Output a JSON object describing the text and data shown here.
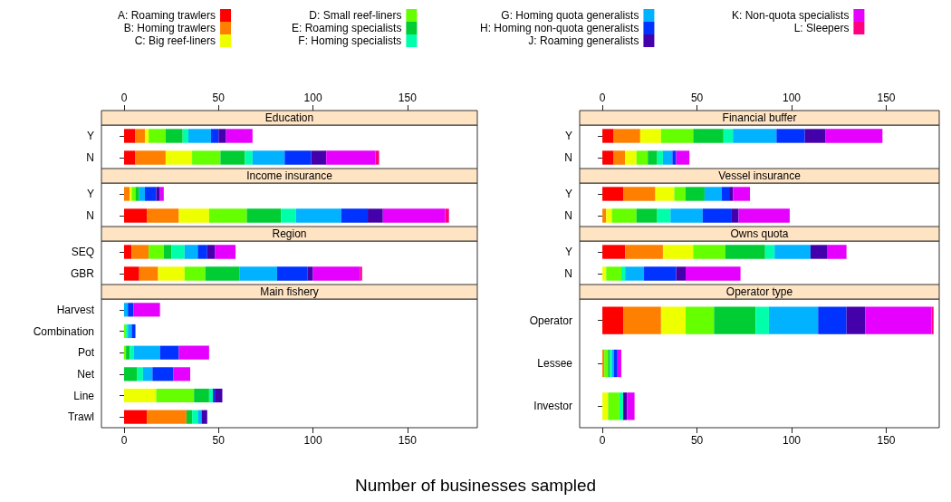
{
  "chart_data": [
    {
      "type": "bar",
      "title": "Education",
      "categories": [
        "Y",
        "N"
      ],
      "stacked": true,
      "orientation": "horizontal",
      "legend": "top",
      "xlim": [
        -12,
        187
      ],
      "xticks": [
        0,
        50,
        100,
        150
      ],
      "series": [
        {
          "name": "A: Roaming trawlers",
          "color": "#ff0000",
          "values": [
            6,
            6
          ]
        },
        {
          "name": "B: Homing trawlers",
          "color": "#ff8000",
          "values": [
            5,
            16
          ]
        },
        {
          "name": "C: Big reef-liners",
          "color": "#eeff00",
          "values": [
            2,
            14
          ]
        },
        {
          "name": "D: Small reef-liners",
          "color": "#66ff00",
          "values": [
            9,
            15
          ]
        },
        {
          "name": "E: Roaming specialists",
          "color": "#00cc33",
          "values": [
            9,
            13
          ]
        },
        {
          "name": "F: Homing specialists",
          "color": "#00ffaa",
          "values": [
            3,
            4
          ]
        },
        {
          "name": "G: Homing quota generalists",
          "color": "#00b2ff",
          "values": [
            12,
            17
          ]
        },
        {
          "name": "H: Homing non-quota generalists",
          "color": "#0033ff",
          "values": [
            4,
            14
          ]
        },
        {
          "name": "J: Roaming generalists",
          "color": "#4400aa",
          "values": [
            4,
            8
          ]
        },
        {
          "name": "K: Non-quota specialists",
          "color": "#e600ff",
          "values": [
            14,
            26
          ]
        },
        {
          "name": "L: Sleepers",
          "color": "#ff0080",
          "values": [
            0,
            2
          ]
        }
      ]
    },
    {
      "type": "bar",
      "title": "Income insurance",
      "categories": [
        "Y",
        "N"
      ],
      "stacked": true,
      "orientation": "horizontal",
      "xlim": [
        -12,
        187
      ],
      "xticks": [
        0,
        50,
        100,
        150
      ],
      "tick_labels": "y",
      "series": [
        {
          "color": "#ff0000",
          "values": [
            0,
            12
          ]
        },
        {
          "color": "#ff8000",
          "values": [
            3,
            17
          ]
        },
        {
          "color": "#eeff00",
          "values": [
            1,
            16
          ]
        },
        {
          "color": "#66ff00",
          "values": [
            2,
            20
          ]
        },
        {
          "color": "#00cc33",
          "values": [
            2,
            18
          ]
        },
        {
          "color": "#00ffaa",
          "values": [
            0,
            8
          ]
        },
        {
          "color": "#00b2ff",
          "values": [
            3,
            24
          ]
        },
        {
          "color": "#0033ff",
          "values": [
            6,
            14
          ]
        },
        {
          "color": "#4400aa",
          "values": [
            2,
            8
          ]
        },
        {
          "color": "#e600ff",
          "values": [
            2,
            33
          ]
        },
        {
          "color": "#ff0080",
          "values": [
            0,
            2
          ]
        }
      ]
    },
    {
      "type": "bar",
      "title": "Region",
      "categories": [
        "SEQ",
        "GBR"
      ],
      "stacked": true,
      "orientation": "horizontal",
      "xlim": [
        -12,
        187
      ],
      "xticks": [
        0,
        50,
        100,
        150
      ],
      "tick_labels": "y",
      "series": [
        {
          "color": "#ff0000",
          "values": [
            4,
            8
          ]
        },
        {
          "color": "#ff8000",
          "values": [
            9,
            10
          ]
        },
        {
          "color": "#eeff00",
          "values": [
            0,
            14
          ]
        },
        {
          "color": "#66ff00",
          "values": [
            8,
            11
          ]
        },
        {
          "color": "#00cc33",
          "values": [
            4,
            18
          ]
        },
        {
          "color": "#00ffaa",
          "values": [
            7,
            0
          ]
        },
        {
          "color": "#00b2ff",
          "values": [
            7,
            20
          ]
        },
        {
          "color": "#0033ff",
          "values": [
            5,
            16
          ]
        },
        {
          "color": "#4400aa",
          "values": [
            4,
            3
          ]
        },
        {
          "color": "#e600ff",
          "values": [
            11,
            25
          ]
        },
        {
          "color": "#ff0080",
          "values": [
            0,
            1
          ]
        }
      ]
    },
    {
      "type": "bar",
      "title": "Main fishery",
      "categories": [
        "Harvest",
        "Combination",
        "Pot",
        "Net",
        "Line",
        "Trawl"
      ],
      "stacked": true,
      "orientation": "horizontal",
      "xlabel": "Number of businesses sampled",
      "xlim": [
        -12,
        187
      ],
      "xticks": [
        0,
        50,
        100,
        150
      ],
      "series": [
        {
          "color": "#ff0000",
          "values": [
            0,
            0,
            0,
            0,
            0,
            12
          ]
        },
        {
          "color": "#ff8000",
          "values": [
            0,
            0,
            0,
            0,
            0,
            21
          ]
        },
        {
          "color": "#eeff00",
          "values": [
            0,
            0,
            0,
            0,
            17,
            0
          ]
        },
        {
          "color": "#66ff00",
          "values": [
            0,
            1,
            1,
            0,
            20,
            0
          ]
        },
        {
          "color": "#00cc33",
          "values": [
            0,
            0,
            2,
            7,
            8,
            3
          ]
        },
        {
          "color": "#00ffaa",
          "values": [
            0,
            1,
            2,
            3,
            2,
            3
          ]
        },
        {
          "color": "#00b2ff",
          "values": [
            2,
            2,
            14,
            5,
            0,
            2
          ]
        },
        {
          "color": "#0033ff",
          "values": [
            3,
            2,
            10,
            11,
            1,
            0
          ]
        },
        {
          "color": "#4400aa",
          "values": [
            0,
            0,
            0,
            0,
            4,
            3
          ]
        },
        {
          "color": "#e600ff",
          "values": [
            14,
            0,
            16,
            9,
            0,
            0
          ]
        },
        {
          "color": "#ff0080",
          "values": [
            0,
            0,
            0,
            0,
            0,
            0
          ]
        }
      ]
    },
    {
      "type": "bar",
      "title": "Financial buffer",
      "categories": [
        "Y",
        "N"
      ],
      "stacked": true,
      "orientation": "horizontal",
      "xlim": [
        -12,
        178
      ],
      "xticks": [
        0,
        50,
        100,
        150
      ],
      "series": [
        {
          "color": "#ff0000",
          "values": [
            6,
            6
          ]
        },
        {
          "color": "#ff8000",
          "values": [
            14,
            6
          ]
        },
        {
          "color": "#eeff00",
          "values": [
            11,
            6
          ]
        },
        {
          "color": "#66ff00",
          "values": [
            17,
            6
          ]
        },
        {
          "color": "#00cc33",
          "values": [
            16,
            5
          ]
        },
        {
          "color": "#00ffaa",
          "values": [
            5,
            3
          ]
        },
        {
          "color": "#00b2ff",
          "values": [
            23,
            5
          ]
        },
        {
          "color": "#0033ff",
          "values": [
            15,
            2
          ]
        },
        {
          "color": "#4400aa",
          "values": [
            11,
            0
          ]
        },
        {
          "color": "#e600ff",
          "values": [
            30,
            7
          ]
        },
        {
          "color": "#ff0080",
          "values": [
            0,
            0
          ]
        }
      ]
    },
    {
      "type": "bar",
      "title": "Vessel insurance",
      "categories": [
        "Y",
        "N"
      ],
      "stacked": true,
      "orientation": "horizontal",
      "xlim": [
        -12,
        178
      ],
      "xticks": [
        0,
        50,
        100,
        150
      ],
      "tick_labels": "y",
      "series": [
        {
          "color": "#ff0000",
          "values": [
            11,
            0
          ]
        },
        {
          "color": "#ff8000",
          "values": [
            17,
            2
          ]
        },
        {
          "color": "#eeff00",
          "values": [
            10,
            3
          ]
        },
        {
          "color": "#66ff00",
          "values": [
            6,
            13
          ]
        },
        {
          "color": "#00cc33",
          "values": [
            10,
            11
          ]
        },
        {
          "color": "#00ffaa",
          "values": [
            0,
            7
          ]
        },
        {
          "color": "#00b2ff",
          "values": [
            9,
            17
          ]
        },
        {
          "color": "#0033ff",
          "values": [
            4,
            15
          ]
        },
        {
          "color": "#4400aa",
          "values": [
            2,
            4
          ]
        },
        {
          "color": "#e600ff",
          "values": [
            9,
            27
          ]
        },
        {
          "color": "#ff0080",
          "values": [
            0,
            0
          ]
        }
      ]
    },
    {
      "type": "bar",
      "title": "Owns quota",
      "categories": [
        "Y",
        "N"
      ],
      "stacked": true,
      "orientation": "horizontal",
      "xlim": [
        -12,
        178
      ],
      "xticks": [
        0,
        50,
        100,
        150
      ],
      "tick_labels": "y",
      "series": [
        {
          "color": "#ff0000",
          "values": [
            12,
            0
          ]
        },
        {
          "color": "#ff8000",
          "values": [
            20,
            0
          ]
        },
        {
          "color": "#eeff00",
          "values": [
            16,
            2
          ]
        },
        {
          "color": "#66ff00",
          "values": [
            17,
            8
          ]
        },
        {
          "color": "#00cc33",
          "values": [
            21,
            0
          ]
        },
        {
          "color": "#00ffaa",
          "values": [
            5,
            2
          ]
        },
        {
          "color": "#00b2ff",
          "values": [
            19,
            10
          ]
        },
        {
          "color": "#0033ff",
          "values": [
            0,
            17
          ]
        },
        {
          "color": "#4400aa",
          "values": [
            9,
            5
          ]
        },
        {
          "color": "#e600ff",
          "values": [
            10,
            29
          ]
        },
        {
          "color": "#ff0080",
          "values": [
            0,
            0
          ]
        }
      ]
    },
    {
      "type": "bar",
      "title": "Operator type",
      "categories": [
        "Operator",
        "Lessee",
        "Investor"
      ],
      "stacked": true,
      "orientation": "horizontal",
      "xlim": [
        -12,
        178
      ],
      "xticks": [
        0,
        50,
        100,
        150
      ],
      "series": [
        {
          "color": "#ff0000",
          "values": [
            11,
            0,
            0
          ]
        },
        {
          "color": "#ff8000",
          "values": [
            20,
            1,
            0
          ]
        },
        {
          "color": "#eeff00",
          "values": [
            13,
            0,
            3
          ]
        },
        {
          "color": "#66ff00",
          "values": [
            15,
            2,
            6
          ]
        },
        {
          "color": "#00cc33",
          "values": [
            22,
            1,
            0
          ]
        },
        {
          "color": "#00ffaa",
          "values": [
            7,
            1,
            2
          ]
        },
        {
          "color": "#00b2ff",
          "values": [
            26,
            1,
            0
          ]
        },
        {
          "color": "#0033ff",
          "values": [
            15,
            2,
            0
          ]
        },
        {
          "color": "#4400aa",
          "values": [
            10,
            0,
            2
          ]
        },
        {
          "color": "#e600ff",
          "values": [
            35,
            2,
            4
          ]
        },
        {
          "color": "#ff0080",
          "values": [
            1,
            0,
            0
          ]
        }
      ]
    }
  ]
}
